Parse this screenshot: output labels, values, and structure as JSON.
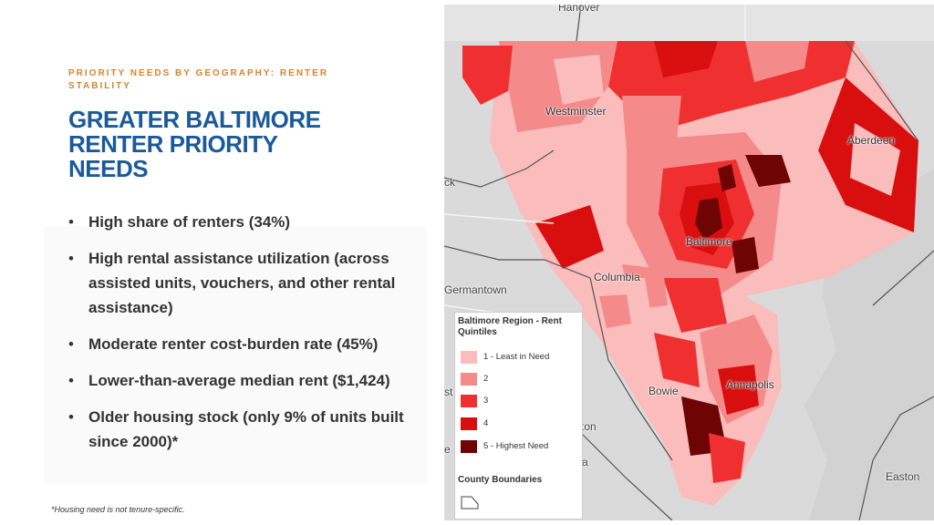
{
  "slide": {
    "eyebrow": "PRIORITY NEEDS BY GEOGRAPHY: RENTER STABILITY",
    "title": "GREATER BALTIMORE\nRENTER PRIORITY\nNEEDS",
    "bullets": [
      "High share of renters (34%)",
      "High rental assistance utilization (across assisted units, vouchers, and other rental assistance)",
      "Moderate renter cost-burden rate (45%)",
      "Lower-than-average median rent ($1,424)",
      "Older housing stock (only 9% of units built since 2000)*"
    ],
    "bullet_glyph": "•",
    "footnote": "*Housing need is not tenure-specific."
  },
  "map": {
    "places": {
      "hanover": "Hanover",
      "westminster": "Westminster",
      "aberdeen": "Aberdeen",
      "baltimore": "Baltimore",
      "columbia": "Columbia",
      "germantown": "Germantown",
      "bowie": "Bowie",
      "annapolis": "Annapolis",
      "easton": "Easton",
      "edge_ck": "ck",
      "edge_st": "st",
      "edge_ton": "ton",
      "edge_e": "e",
      "edge_a": "a"
    },
    "legend": {
      "title": "Baltimore Region - Rent Quintiles",
      "items": [
        {
          "label": "1 - Least in Need",
          "color": "#fbbcbc"
        },
        {
          "label": "2",
          "color": "#f58a8a"
        },
        {
          "label": "3",
          "color": "#f03030"
        },
        {
          "label": "4",
          "color": "#d90f0f"
        },
        {
          "label": "5 - Highest Need",
          "color": "#6e0404"
        }
      ],
      "boundary_title": "County Boundaries"
    }
  }
}
